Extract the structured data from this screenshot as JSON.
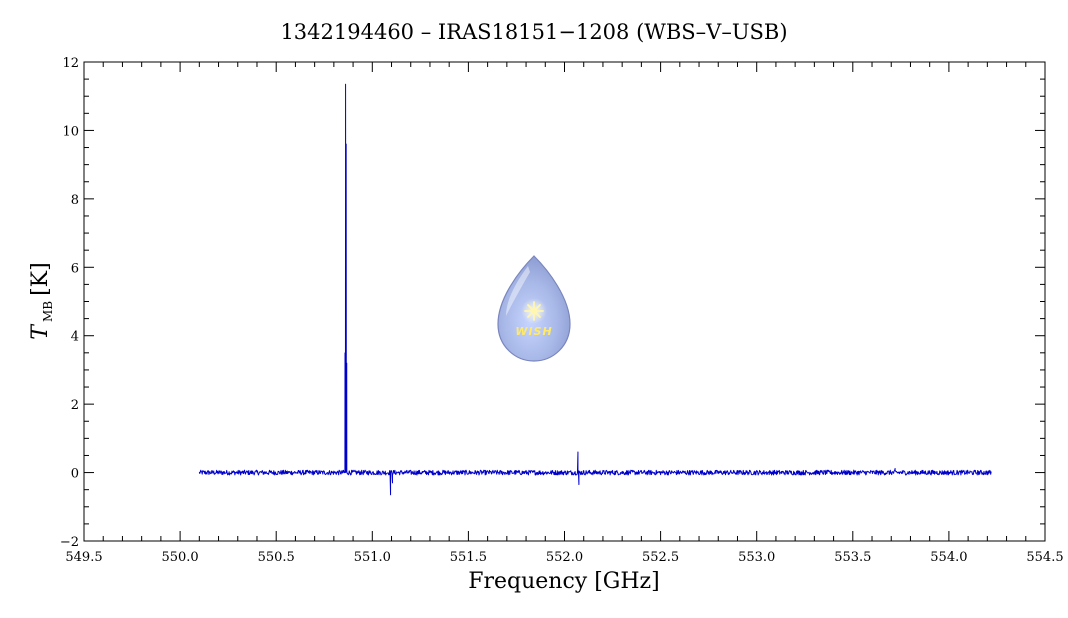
{
  "chart_data": {
    "type": "line",
    "title": "1342194460 – IRAS18151−1208 (WBS–V–USB)",
    "xlabel": "Frequency [GHz]",
    "ylabel": {
      "symbol": "T",
      "subscript": "MB",
      "unit": "[K]"
    },
    "xlim": [
      549.5,
      554.5
    ],
    "ylim": [
      -2,
      12
    ],
    "xticks": [
      "549.5",
      "550.0",
      "550.5",
      "551.0",
      "551.5",
      "552.0",
      "552.5",
      "553.0",
      "553.5",
      "554.0",
      "554.5"
    ],
    "yticks": [
      "−2",
      "0",
      "2",
      "4",
      "6",
      "8",
      "10",
      "12"
    ],
    "grid": false,
    "series_color": "#0000cc",
    "x_range": [
      550.1,
      554.22
    ],
    "baseline": 0.0,
    "features": [
      {
        "x": 550.858,
        "y": 3.5
      },
      {
        "x": 550.861,
        "y": 11.35
      },
      {
        "x": 550.864,
        "y": 9.6
      },
      {
        "x": 550.867,
        "y": 3.2
      },
      {
        "x": 551.095,
        "y": -0.65
      },
      {
        "x": 551.105,
        "y": -0.3
      },
      {
        "x": 552.07,
        "y": 0.6
      },
      {
        "x": 552.075,
        "y": -0.35
      },
      {
        "x": 553.72,
        "y": 0.12
      }
    ]
  },
  "watermark": {
    "text": "WISH"
  }
}
